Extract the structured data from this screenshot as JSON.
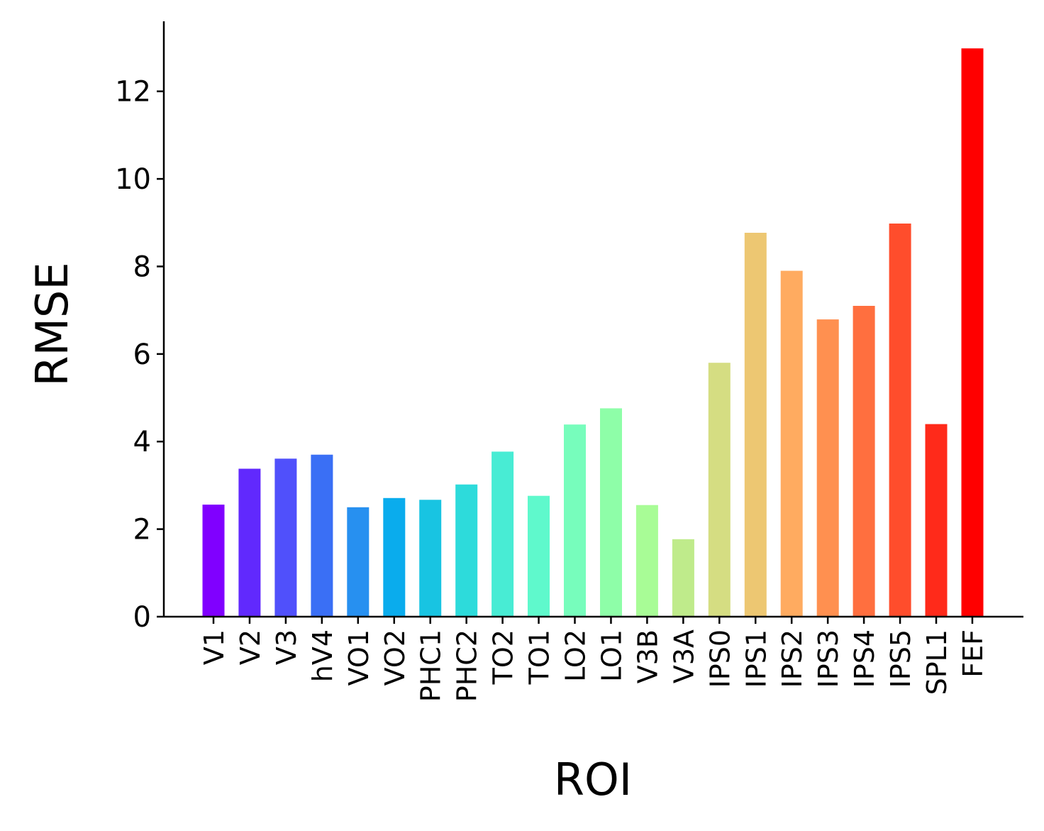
{
  "chart_data": {
    "type": "bar",
    "xlabel": "ROI",
    "ylabel": "RMSE",
    "ylim": [
      0,
      13.6
    ],
    "yticks": [
      0,
      2,
      4,
      6,
      8,
      10,
      12
    ],
    "grid": false,
    "categories": [
      "V1",
      "V2",
      "V3",
      "hV4",
      "VO1",
      "VO2",
      "PHC1",
      "PHC2",
      "TO2",
      "TO1",
      "LO2",
      "LO1",
      "V3B",
      "V3A",
      "IPS0",
      "IPS1",
      "IPS2",
      "IPS3",
      "IPS4",
      "IPS5",
      "SPL1",
      "FEF"
    ],
    "values": [
      2.56,
      3.38,
      3.61,
      3.7,
      2.5,
      2.71,
      2.67,
      3.02,
      3.77,
      2.76,
      4.39,
      4.76,
      2.55,
      1.77,
      5.8,
      8.77,
      7.9,
      6.79,
      7.1,
      8.98,
      4.4,
      12.98
    ],
    "colors": [
      "#8000ff",
      "#6129fd",
      "#5050fb",
      "#3a6ff5",
      "#2790f0",
      "#0aaced",
      "#18c4e2",
      "#2ddbdb",
      "#48ecd4",
      "#5ff9cc",
      "#77fdbc",
      "#8efea8",
      "#a8fc96",
      "#bfeb8b",
      "#d5dd82",
      "#edc772",
      "#ffab60",
      "#ff9050",
      "#ff6f3f",
      "#ff4d2c",
      "#ff2a1a",
      "#ff0000"
    ]
  }
}
